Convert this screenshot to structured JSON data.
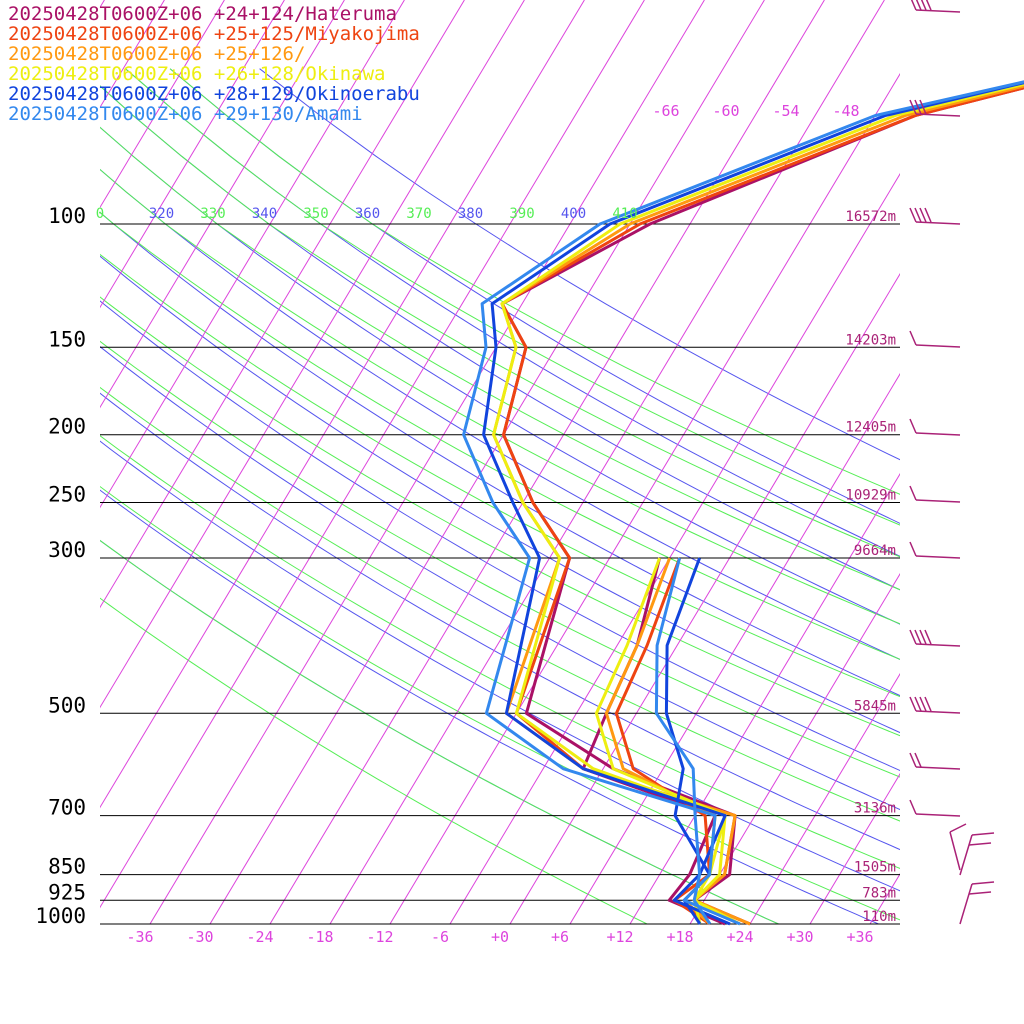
{
  "chart_data": {
    "type": "line",
    "title": "",
    "colors": {
      "isotherm": "#dd44dd",
      "dry_adiabat": "#5555ee",
      "moist_adiabat": "#55ee55",
      "pressure_line": "#000000",
      "tick_label": "#dd44dd",
      "height_label": "#aa2277",
      "barb": "#aa2277"
    },
    "pressure_levels": [
      {
        "p": 100,
        "label": "100",
        "height": "16572m"
      },
      {
        "p": 150,
        "label": "150",
        "height": "14203m"
      },
      {
        "p": 200,
        "label": "200",
        "height": "12405m"
      },
      {
        "p": 250,
        "label": "250",
        "height": "10929m"
      },
      {
        "p": 300,
        "label": "300",
        "height": "9664m"
      },
      {
        "p": 500,
        "label": "500",
        "height": "5845m"
      },
      {
        "p": 700,
        "label": "700",
        "height": "3136m"
      },
      {
        "p": 850,
        "label": "850",
        "height": "1505m"
      },
      {
        "p": 925,
        "label": "925",
        "height": "783m"
      },
      {
        "p": 1000,
        "label": "1000",
        "height": "110m"
      }
    ],
    "x_ticks": [
      "-36",
      "-30",
      "-24",
      "-18",
      "-12",
      "-6",
      "+0",
      "+6",
      "+12",
      "+18",
      "+24",
      "+30",
      "+36"
    ],
    "x_tick_values": [
      -36,
      -30,
      -24,
      -18,
      -12,
      -6,
      0,
      6,
      12,
      18,
      24,
      30,
      36
    ],
    "upper_temp_labels": [
      "-66",
      "-60",
      "-54",
      "-48"
    ],
    "theta_labels": [
      "0",
      "320",
      "330",
      "340",
      "350",
      "360",
      "370",
      "380",
      "390",
      "400",
      "410"
    ],
    "series": [
      {
        "name": "20250428T0600Z+06 +24+124/Hateruma",
        "color": "#aa1166",
        "temperature": [
          [
            1000,
            24
          ],
          [
            925,
            17
          ],
          [
            850,
            19
          ],
          [
            700,
            16
          ],
          [
            600,
            1
          ],
          [
            500,
            -11
          ],
          [
            300,
            -16
          ],
          [
            250,
            -23
          ],
          [
            200,
            -30
          ],
          [
            150,
            -33
          ],
          [
            130,
            -38
          ],
          [
            100,
            -28
          ],
          [
            70,
            -8
          ],
          [
            50,
            26
          ]
        ],
        "dewpoint": [
          [
            1000,
            21.5
          ],
          [
            925,
            14.5
          ],
          [
            850,
            15
          ],
          [
            700,
            14
          ],
          [
            600,
            -2
          ],
          [
            500,
            -3
          ],
          [
            400,
            -4
          ],
          [
            300,
            -7
          ]
        ]
      },
      {
        "name": "20250428T0600Z+06 +25+125/Miyakojima",
        "color": "#ee4411",
        "temperature": [
          [
            1000,
            24
          ],
          [
            925,
            17
          ],
          [
            850,
            18.5
          ],
          [
            700,
            16
          ],
          [
            600,
            -2
          ],
          [
            500,
            -12
          ],
          [
            300,
            -16
          ],
          [
            250,
            -23
          ],
          [
            200,
            -30
          ],
          [
            150,
            -33
          ],
          [
            130,
            -38
          ],
          [
            100,
            -29
          ],
          [
            70,
            -8
          ],
          [
            50,
            26
          ]
        ],
        "dewpoint": [
          [
            1000,
            20
          ],
          [
            925,
            15
          ],
          [
            850,
            17
          ],
          [
            700,
            13
          ],
          [
            600,
            3
          ],
          [
            500,
            -2
          ],
          [
            400,
            -3
          ],
          [
            300,
            -5
          ]
        ]
      },
      {
        "name": "20250428T0600Z+06 +25+126/",
        "color": "#ff9911",
        "temperature": [
          [
            1000,
            24
          ],
          [
            925,
            17
          ],
          [
            850,
            18.5
          ],
          [
            700,
            16
          ],
          [
            600,
            -2
          ],
          [
            500,
            -13
          ],
          [
            300,
            -17
          ],
          [
            250,
            -24
          ],
          [
            200,
            -31
          ],
          [
            150,
            -34
          ],
          [
            130,
            -38
          ],
          [
            100,
            -30
          ],
          [
            70,
            -9
          ],
          [
            50,
            26
          ]
        ],
        "dewpoint": [
          [
            1000,
            20
          ],
          [
            925,
            16
          ],
          [
            850,
            17
          ],
          [
            700,
            14
          ],
          [
            600,
            2
          ],
          [
            500,
            -3
          ],
          [
            400,
            -4
          ],
          [
            300,
            -6
          ]
        ]
      },
      {
        "name": "20250428T0600Z+06 +26+128/Okinawa",
        "color": "#eeee11",
        "temperature": [
          [
            1000,
            23
          ],
          [
            925,
            17
          ],
          [
            850,
            18
          ],
          [
            700,
            15
          ],
          [
            600,
            -1
          ],
          [
            500,
            -12
          ],
          [
            300,
            -17
          ],
          [
            250,
            -24
          ],
          [
            200,
            -31
          ],
          [
            150,
            -34
          ],
          [
            130,
            -38
          ],
          [
            100,
            -31
          ],
          [
            70,
            -10
          ],
          [
            50,
            26
          ]
        ],
        "dewpoint": [
          [
            1000,
            19
          ],
          [
            925,
            17
          ],
          [
            850,
            17
          ],
          [
            700,
            15
          ],
          [
            600,
            1
          ],
          [
            500,
            -4
          ],
          [
            400,
            -5
          ],
          [
            300,
            -7
          ]
        ]
      },
      {
        "name": "20250428T0600Z+06 +28+129/Okinoerabu",
        "color": "#1144dd",
        "temperature": [
          [
            1000,
            22
          ],
          [
            925,
            15
          ],
          [
            850,
            16
          ],
          [
            700,
            15
          ],
          [
            600,
            -2
          ],
          [
            500,
            -13
          ],
          [
            300,
            -19
          ],
          [
            250,
            -25
          ],
          [
            200,
            -32
          ],
          [
            150,
            -36
          ],
          [
            130,
            -39
          ],
          [
            100,
            -32
          ],
          [
            70,
            -11
          ],
          [
            50,
            26
          ]
        ],
        "dewpoint": [
          [
            1000,
            19
          ],
          [
            925,
            16
          ],
          [
            850,
            17
          ],
          [
            700,
            10
          ],
          [
            600,
            8
          ],
          [
            500,
            3
          ],
          [
            400,
            -1
          ],
          [
            300,
            -3
          ]
        ]
      },
      {
        "name": "20250428T0600Z+06 +29+130/Amami",
        "color": "#3388ee",
        "temperature": [
          [
            1000,
            23
          ],
          [
            925,
            16
          ],
          [
            850,
            17
          ],
          [
            700,
            14
          ],
          [
            600,
            -4
          ],
          [
            500,
            -15
          ],
          [
            300,
            -20
          ],
          [
            250,
            -27
          ],
          [
            200,
            -34
          ],
          [
            150,
            -37
          ],
          [
            130,
            -40
          ],
          [
            100,
            -33
          ],
          [
            70,
            -12
          ],
          [
            50,
            27
          ]
        ],
        "dewpoint": [
          [
            1000,
            20
          ],
          [
            925,
            17
          ],
          [
            850,
            16
          ],
          [
            700,
            12
          ],
          [
            600,
            9
          ],
          [
            500,
            2
          ],
          [
            400,
            -2
          ],
          [
            300,
            -5
          ]
        ]
      }
    ]
  }
}
